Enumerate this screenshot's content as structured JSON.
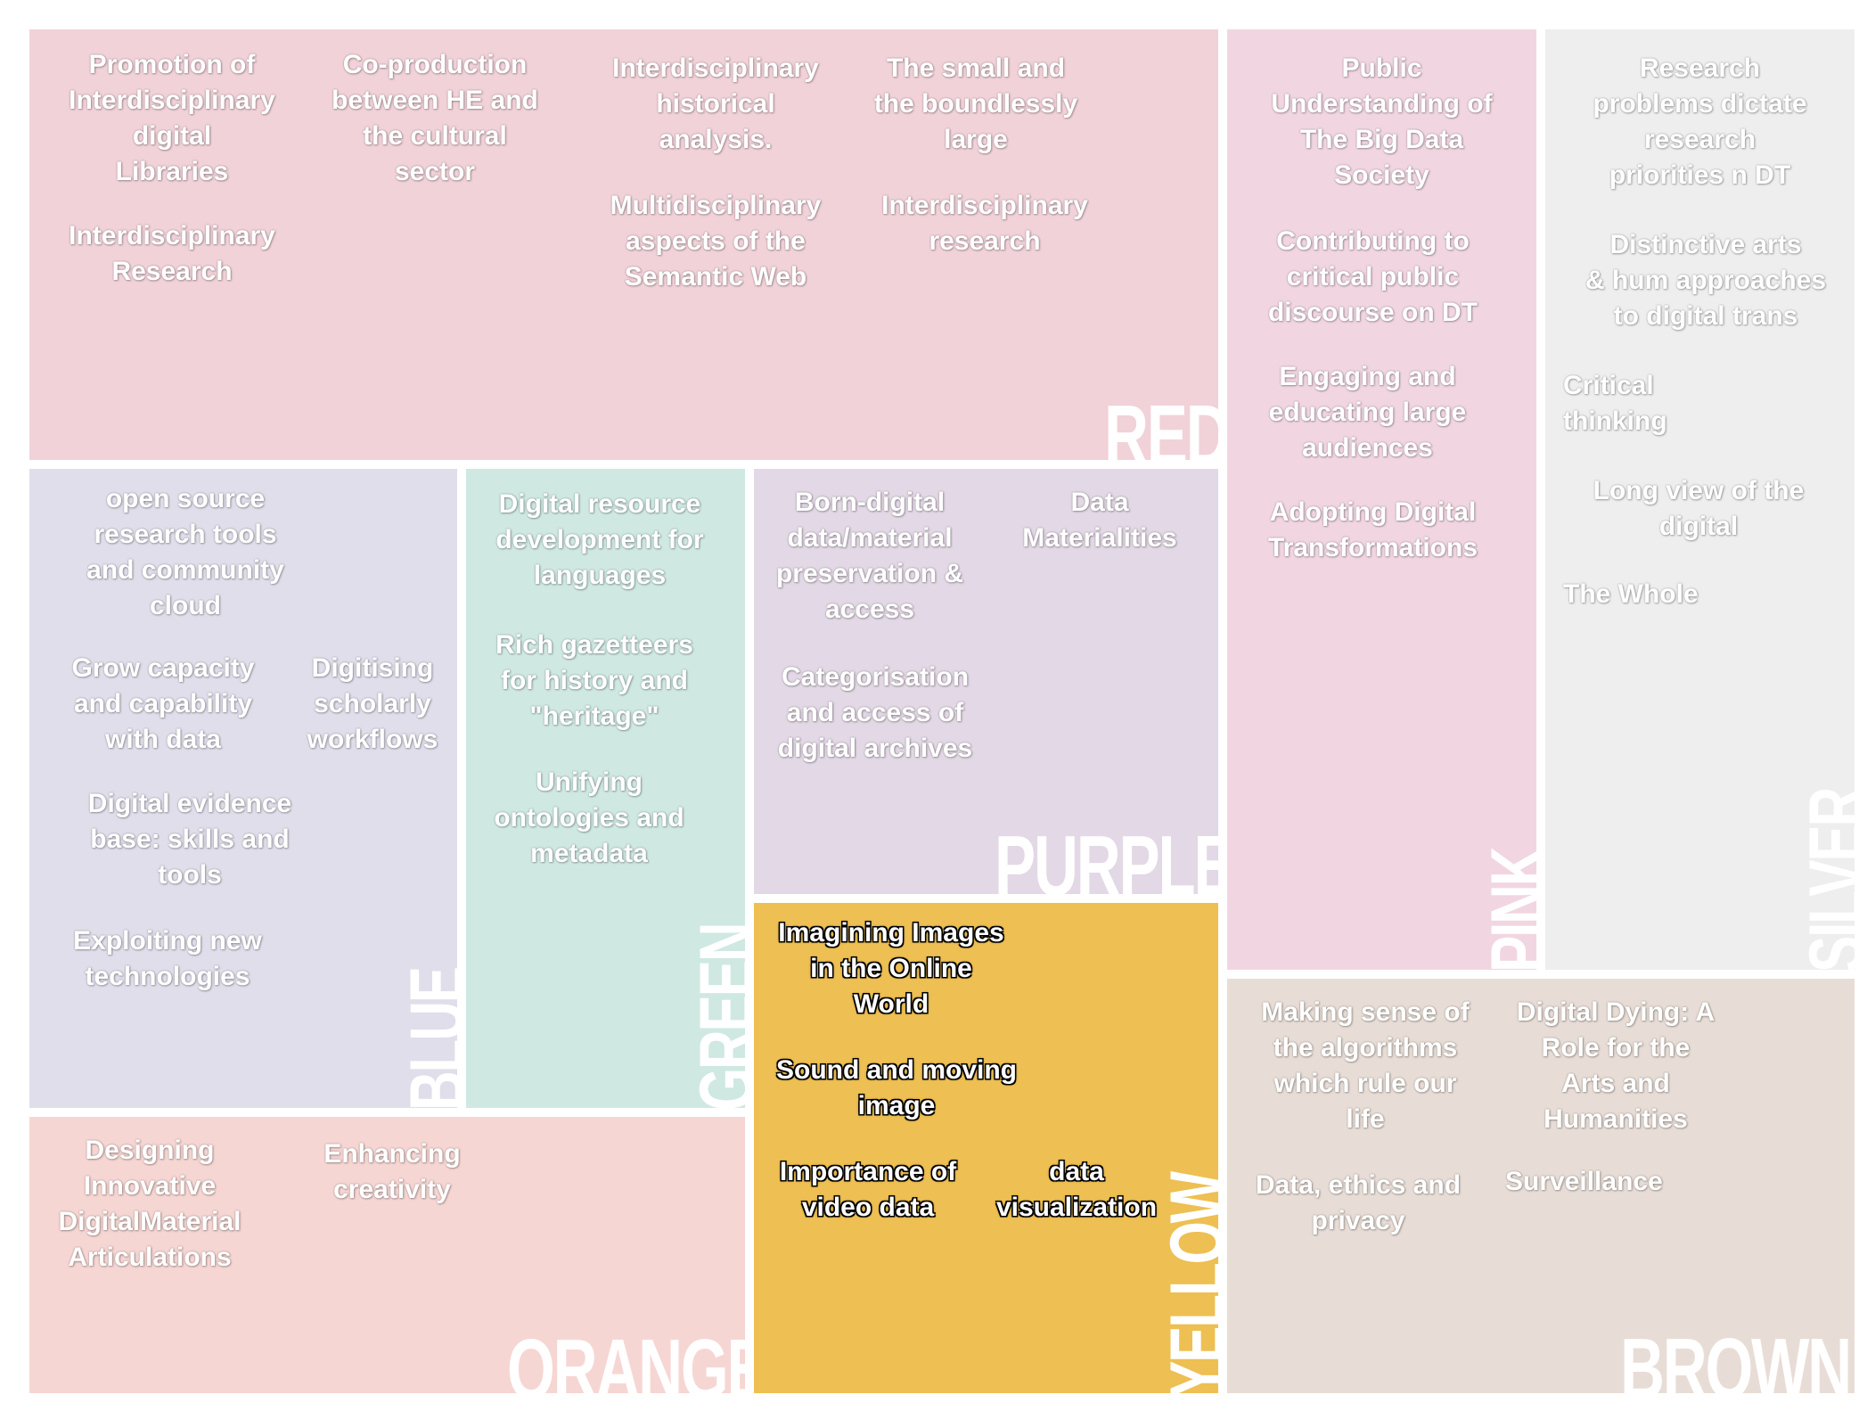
{
  "panels": {
    "red": {
      "label": "RED",
      "color": "#f1d2d8",
      "topics": [
        "Promotion of\nInterdisciplinary\ndigital\nLibraries",
        "Interdisciplinary\nResearch",
        "Co-production\nbetween HE and\nthe cultural\nsector",
        "Interdisciplinary\nhistorical\nanalysis.",
        "Multidisciplinary\naspects of the\nSemantic Web",
        "The small and\nthe boundlessly\nlarge",
        "Interdisciplinary\nresearch"
      ]
    },
    "pink": {
      "label": "PINK",
      "color": "#f1d6e1",
      "topics": [
        "Public\nUnderstanding of\nThe Big Data\nSociety",
        "Contributing to\ncritical public\ndiscourse on DT",
        "Engaging and\neducating large\naudiences",
        "Adopting Digital\nTransformations"
      ]
    },
    "silver": {
      "label": "SILVER",
      "color": "#eeeeee",
      "topics": [
        "Research\nproblems dictate\nresearch\npriorities n DT",
        "Distinctive arts\n& hum approaches\nto digital trans",
        "Critical\nthinking",
        "Long view of the\ndigital",
        "The Whole"
      ]
    },
    "blue": {
      "label": "BLUE",
      "color": "#e0deea",
      "topics": [
        "open source\nresearch tools\nand community\ncloud",
        "Grow capacity\nand capability\nwith data",
        "Digitising\nscholarly\nworkflows",
        "Digital evidence\nbase: skills and\ntools",
        "Exploiting new\ntechnologies"
      ]
    },
    "green": {
      "label": "GREEN",
      "color": "#cfe8e2",
      "topics": [
        "Digital resource\ndevelopment for\nlanguages",
        "Rich gazetteers\nfor history and\n\"heritage\"",
        "Unifying\nontologies and\nmetadata"
      ]
    },
    "purple": {
      "label": "PURPLE",
      "color": "#e3d8e5",
      "topics": [
        "Born-digital\ndata/material\npreservation &\naccess",
        "Data\nMaterialities",
        "Categorisation\nand access of\ndigital archives"
      ]
    },
    "yellow": {
      "label": "YELLOW",
      "color": "#eebf52",
      "topics": [
        "Imagining Images\nin the Online\nWorld",
        "Sound and moving\nimage",
        "Importance of\nvideo data",
        "data\nvisualization"
      ]
    },
    "orange": {
      "label": "ORANGE",
      "color": "#f6d6d3",
      "topics": [
        "Designing\nInnovative\nDigitalMaterial\nArticulations",
        "Enhancing\ncreativity"
      ]
    },
    "brown": {
      "label": "BROWN",
      "color": "#e8ddd6",
      "topics": [
        "Making sense of\nthe algorithms\nwhich rule our\nlife",
        "Data, ethics and\nprivacy",
        "Digital Dying: A\nRole for the\nArts and\nHumanities",
        "Surveillance"
      ]
    }
  }
}
